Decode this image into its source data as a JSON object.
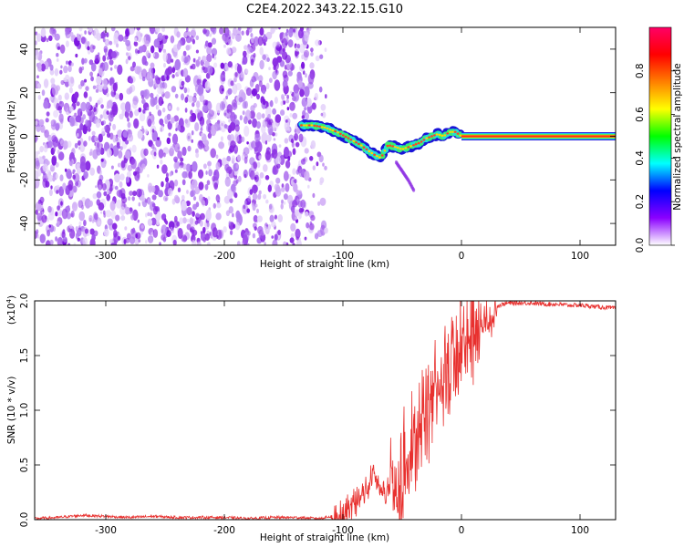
{
  "title": "C2E4.2022.343.22.15.G10",
  "chart_data": [
    {
      "type": "heatmap",
      "xlabel": "Height of straight line (km)",
      "ylabel": "Frequency (Hz)",
      "xlim": [
        -360,
        130
      ],
      "ylim": [
        -50,
        50
      ],
      "x_ticks": [
        -300,
        -200,
        -100,
        0,
        100
      ],
      "x_tick_labels": [
        "-300",
        "-200",
        "-100",
        "0",
        "100"
      ],
      "y_ticks": [
        -40,
        -20,
        0,
        20,
        40
      ],
      "y_tick_labels": [
        "-40",
        "-20",
        "0",
        "20",
        "40"
      ],
      "noise_region_x": [
        -360,
        -120
      ],
      "ridge": {
        "x": [
          -135,
          -125,
          -115,
          -105,
          -95,
          -85,
          -75,
          -68,
          -62,
          -55,
          -50,
          -45,
          -40,
          -35,
          -30,
          -25,
          -20,
          -15,
          -10,
          -5,
          0,
          130
        ],
        "frequency": [
          5,
          5,
          4,
          2,
          -1,
          -4,
          -8,
          -10,
          -4,
          -5,
          -6,
          -5,
          -4,
          -3,
          -1,
          0,
          1,
          0,
          2,
          2,
          0,
          0
        ]
      },
      "branch": {
        "x": [
          -55,
          -50,
          -45,
          -40
        ],
        "frequency": [
          -12,
          -16,
          -20,
          -25
        ]
      },
      "colorbar": {
        "label": "Normalized spectral amplitude",
        "range": [
          0,
          1
        ],
        "ticks": [
          0.0,
          0.2,
          0.4,
          0.6,
          0.8
        ],
        "tick_labels": [
          "0.0",
          "0.2",
          "0.4",
          "0.6",
          "0.8"
        ],
        "colors": [
          "#ffffff",
          "#8b00ff",
          "#0000ff",
          "#00ffff",
          "#00ff00",
          "#ffff00",
          "#ff7f00",
          "#ff0000",
          "#ff0066"
        ]
      }
    },
    {
      "type": "line",
      "xlabel": "Height of straight line (km)",
      "ylabel": "SNR (10 * v/v)",
      "exponent_label": "(x10",
      "exponent_power": "4",
      "exponent_close": ")",
      "xlim": [
        -360,
        130
      ],
      "ylim": [
        0,
        2.0
      ],
      "x_ticks": [
        -300,
        -200,
        -100,
        0,
        100
      ],
      "x_tick_labels": [
        "-300",
        "-200",
        "-100",
        "0",
        "100"
      ],
      "y_ticks": [
        0.0,
        0.5,
        1.0,
        1.5,
        2.0
      ],
      "y_tick_labels": [
        "0.0",
        "0.5",
        "1.0",
        "1.5",
        "2.0"
      ],
      "color": "#e8302e",
      "series": [
        {
          "x": [
            -360,
            -340,
            -320,
            -300,
            -280,
            -260,
            -240,
            -220,
            -200,
            -180,
            -160,
            -140,
            -120,
            -110,
            -100,
            -95,
            -90,
            -85,
            -80,
            -75,
            -70,
            -65,
            -60,
            -55,
            -50,
            -45,
            -40,
            -35,
            -30,
            -25,
            -20,
            -15,
            -10,
            -5,
            0,
            5,
            10,
            15,
            20,
            25,
            30,
            35,
            40,
            50,
            60,
            70,
            80,
            90,
            100,
            110,
            120,
            130
          ],
          "values": [
            0.01,
            0.02,
            0.04,
            0.03,
            0.02,
            0.03,
            0.02,
            0.02,
            0.02,
            0.01,
            0.02,
            0.02,
            0.01,
            0.03,
            0.06,
            0.12,
            0.18,
            0.22,
            0.3,
            0.45,
            0.35,
            0.25,
            0.4,
            0.3,
            0.45,
            0.6,
            0.75,
            1.0,
            1.1,
            1.25,
            1.3,
            1.4,
            1.5,
            1.6,
            1.65,
            1.7,
            1.75,
            1.8,
            1.85,
            1.9,
            1.95,
            1.97,
            1.98,
            1.98,
            1.98,
            1.97,
            1.97,
            1.96,
            1.96,
            1.95,
            1.94,
            1.93
          ]
        }
      ]
    }
  ]
}
